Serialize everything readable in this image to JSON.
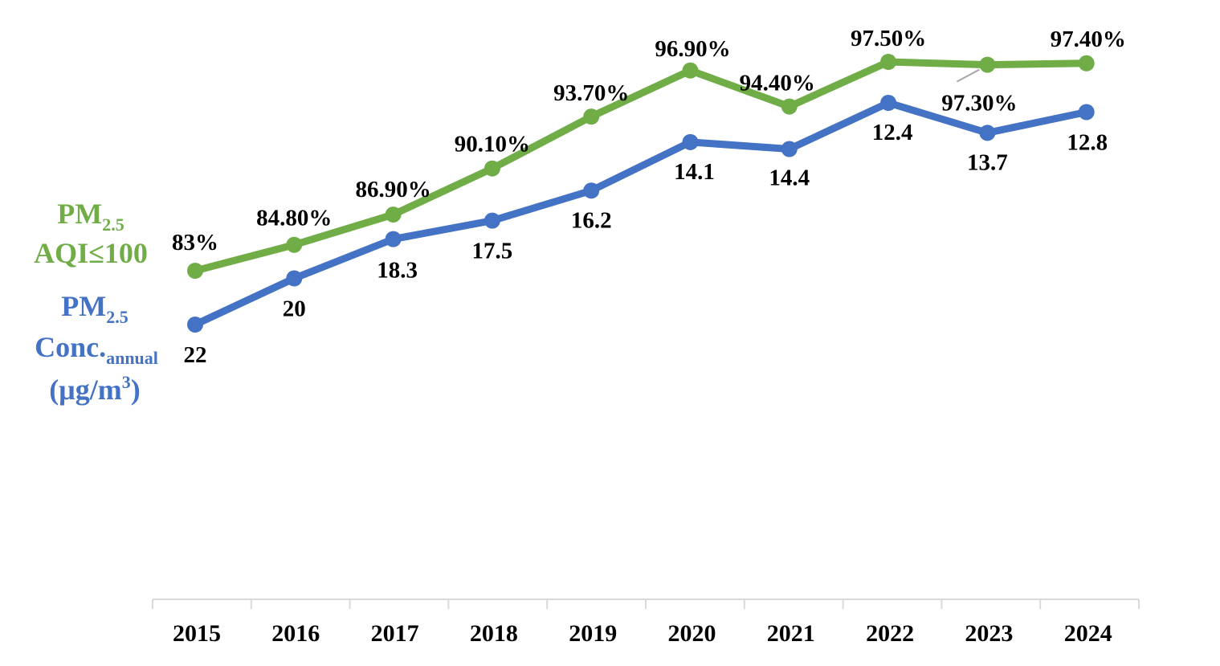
{
  "chart_data": {
    "type": "line",
    "x": [
      "2015",
      "2016",
      "2017",
      "2018",
      "2019",
      "2020",
      "2021",
      "2022",
      "2023",
      "2024"
    ],
    "series": [
      {
        "key": "aqi",
        "name_parts": [
          "PM",
          "2.5",
          "AQI≤100"
        ],
        "color": "#70AD47",
        "values": [
          83.0,
          84.8,
          86.9,
          90.1,
          93.7,
          96.9,
          94.4,
          97.5,
          97.3,
          97.4
        ],
        "labels": [
          "83%",
          "84.80%",
          "86.90%",
          "90.10%",
          "93.70%",
          "96.90%",
          "94.40%",
          "97.50%",
          "97.30%",
          "97.40%"
        ]
      },
      {
        "key": "conc",
        "name_parts": [
          "PM",
          "2.5",
          "Conc.",
          "annual",
          "(μg/m",
          "3",
          ")"
        ],
        "color": "#4472C4",
        "values": [
          22,
          20,
          18.3,
          17.5,
          16.2,
          14.1,
          14.4,
          12.4,
          13.7,
          12.8
        ],
        "labels": [
          "22",
          "20",
          "18.3",
          "17.5",
          "16.2",
          "14.1",
          "14.4",
          "12.4",
          "13.7",
          "12.8"
        ]
      }
    ],
    "title": "",
    "xlabel": "",
    "ylabel": "",
    "grid": false,
    "axis_color": "#D9D9D9",
    "label_color": "#000000"
  }
}
